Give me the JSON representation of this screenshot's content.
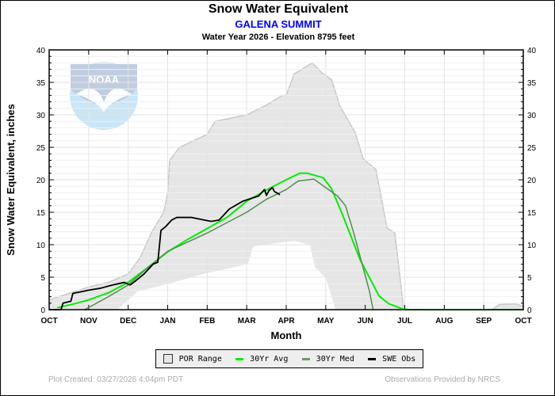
{
  "chart_data": {
    "type": "area",
    "title": "Snow Water Equivalent",
    "station": "GALENA SUMMIT",
    "subtitle": "Water Year 2026 -  Elevation 8795 feet",
    "xlabel": "Month",
    "ylabel": "Snow Water Equivalent, inches",
    "ylim": [
      0,
      40
    ],
    "yticks": [
      "0",
      "5",
      "10",
      "15",
      "20",
      "25",
      "30",
      "35",
      "40"
    ],
    "xticks": [
      "OCT",
      "NOV",
      "DEC",
      "JAN",
      "FEB",
      "MAR",
      "APR",
      "MAY",
      "JUN",
      "JUL",
      "AUG",
      "SEP",
      "OCT"
    ],
    "x_units": "months since Oct 1",
    "grid": true,
    "legend_position": "bottom",
    "series": [
      {
        "name": "POR Range",
        "type": "band",
        "color": "#e6e6e6",
        "upper": [
          [
            0,
            1.5
          ],
          [
            0.5,
            2.5
          ],
          [
            1,
            3.5
          ],
          [
            1.5,
            4.2
          ],
          [
            2,
            5.5
          ],
          [
            2.3,
            8
          ],
          [
            2.6,
            12
          ],
          [
            2.9,
            15
          ],
          [
            3.0,
            18
          ],
          [
            3.05,
            23
          ],
          [
            3.3,
            25
          ],
          [
            4,
            27
          ],
          [
            4.2,
            29
          ],
          [
            5,
            30
          ],
          [
            5.5,
            31.5
          ],
          [
            5.9,
            33
          ],
          [
            6.0,
            33
          ],
          [
            6.2,
            36.3
          ],
          [
            6.66,
            38
          ],
          [
            6.9,
            36.5
          ],
          [
            7.15,
            35.4
          ],
          [
            7.35,
            31.5
          ],
          [
            7.75,
            27.2
          ],
          [
            7.95,
            23.2
          ],
          [
            8.27,
            21.6
          ],
          [
            8.55,
            12.6
          ],
          [
            8.75,
            11.8
          ],
          [
            8.97,
            0.2
          ],
          [
            9.0,
            0
          ],
          [
            11.2,
            0
          ],
          [
            11.4,
            0.8
          ],
          [
            11.8,
            0.9
          ],
          [
            12,
            0.5
          ]
        ],
        "lower": [
          [
            0,
            0
          ],
          [
            1.73,
            0
          ],
          [
            2.23,
            2.8
          ],
          [
            3.03,
            4
          ],
          [
            3.9,
            5.5
          ],
          [
            5.03,
            7
          ],
          [
            5.15,
            9.5
          ],
          [
            5.2,
            9.8
          ],
          [
            6.2,
            10.6
          ],
          [
            6.6,
            10
          ],
          [
            6.73,
            6.5
          ],
          [
            7.0,
            4.9
          ],
          [
            7.25,
            0
          ],
          [
            12,
            0
          ]
        ]
      },
      {
        "name": "30Yr Avg",
        "type": "line",
        "color": "#00ee00",
        "points": [
          [
            0.2,
            0.3
          ],
          [
            0.7,
            1
          ],
          [
            1,
            1.5
          ],
          [
            1.5,
            2.6
          ],
          [
            2,
            4.2
          ],
          [
            2.5,
            6.5
          ],
          [
            3,
            8.9
          ],
          [
            3.5,
            10.8
          ],
          [
            4,
            12.5
          ],
          [
            4.5,
            14.2
          ],
          [
            5,
            16.7
          ],
          [
            5.46,
            18.3
          ],
          [
            6,
            20
          ],
          [
            6.34,
            21
          ],
          [
            6.55,
            21
          ],
          [
            6.94,
            20.3
          ],
          [
            7.14,
            18.7
          ],
          [
            7.4,
            15
          ],
          [
            7.87,
            7.7
          ],
          [
            8.35,
            2.1
          ],
          [
            8.6,
            0.9
          ],
          [
            8.95,
            0.1
          ],
          [
            9.1,
            0
          ],
          [
            12,
            0
          ]
        ]
      },
      {
        "name": "30Yr Med",
        "type": "line",
        "color": "#4e8f4e",
        "points": [
          [
            0.9,
            0
          ],
          [
            1.5,
            2
          ],
          [
            2,
            3.8
          ],
          [
            2.5,
            6.5
          ],
          [
            3,
            9
          ],
          [
            4,
            11.8
          ],
          [
            5,
            15
          ],
          [
            5.5,
            17
          ],
          [
            6,
            18.5
          ],
          [
            6.3,
            19.8
          ],
          [
            6.7,
            20.1
          ],
          [
            7,
            18.8
          ],
          [
            7.3,
            17.5
          ],
          [
            7.5,
            16
          ],
          [
            7.7,
            12
          ],
          [
            7.9,
            7.5
          ],
          [
            8.1,
            3
          ],
          [
            8.2,
            0
          ]
        ]
      },
      {
        "name": "SWE Obs",
        "type": "line",
        "color": "#000000",
        "points": [
          [
            0,
            0
          ],
          [
            0.3,
            0
          ],
          [
            0.35,
            1
          ],
          [
            0.55,
            1.3
          ],
          [
            0.6,
            2.5
          ],
          [
            1,
            3
          ],
          [
            1.3,
            3.3
          ],
          [
            1.6,
            3.8
          ],
          [
            1.9,
            4.2
          ],
          [
            2.05,
            3.8
          ],
          [
            2.2,
            4.5
          ],
          [
            2.4,
            5.5
          ],
          [
            2.63,
            7
          ],
          [
            2.75,
            7.3
          ],
          [
            2.83,
            12.2
          ],
          [
            2.95,
            12.8
          ],
          [
            3.1,
            13.8
          ],
          [
            3.23,
            14.2
          ],
          [
            3.6,
            14.2
          ],
          [
            4.1,
            13.6
          ],
          [
            4.3,
            13.8
          ],
          [
            4.56,
            15.5
          ],
          [
            4.9,
            16.7
          ],
          [
            5.1,
            17.1
          ],
          [
            5.3,
            17.5
          ],
          [
            5.45,
            18.5
          ],
          [
            5.5,
            17.6
          ],
          [
            5.56,
            18.3
          ],
          [
            5.65,
            18.8
          ],
          [
            5.7,
            18.2
          ],
          [
            5.84,
            17.7
          ]
        ]
      }
    ]
  },
  "legend": [
    "POR Range",
    "30Yr Avg",
    "30Yr Med",
    "SWE Obs"
  ],
  "footer": {
    "created": "Plot Created: 03/27/2026 4:04pm PDT",
    "credit": "Observations Provided by NRCS"
  },
  "logo_text": "NOAA"
}
